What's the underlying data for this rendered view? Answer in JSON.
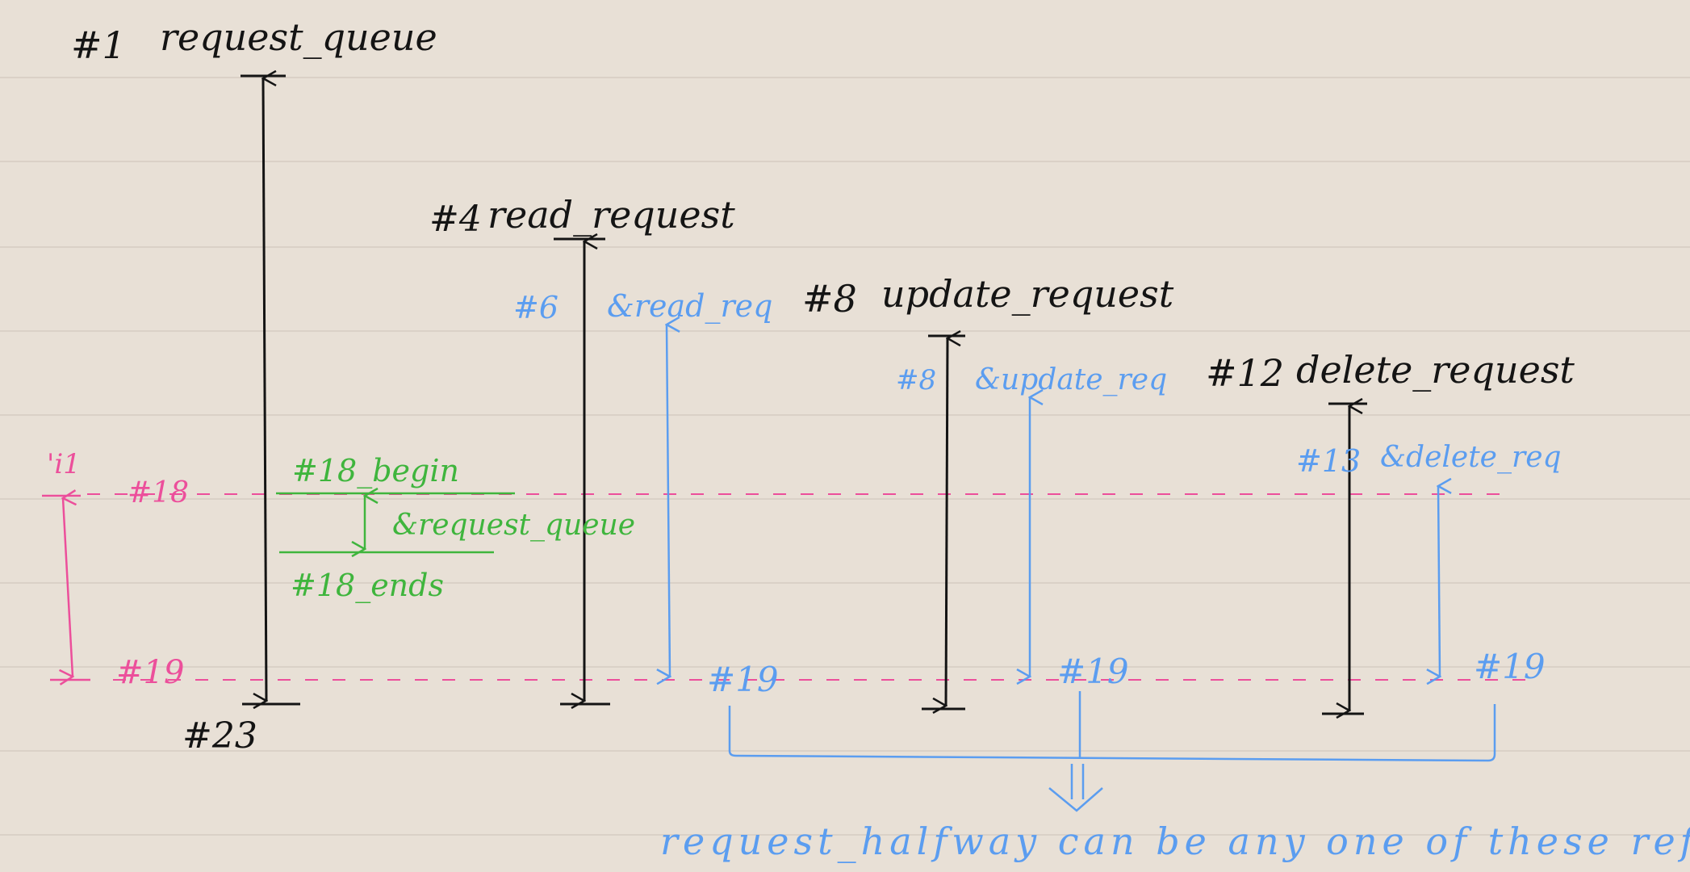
{
  "labels": {
    "request_queue": {
      "num": "#1",
      "name": "request_queue"
    },
    "read_request": {
      "num": "#4",
      "name": "read_request"
    },
    "update_request": {
      "num": "#8",
      "name": "update_request"
    },
    "delete_request": {
      "num": "#12",
      "name": "delete_request"
    },
    "end_23": "#23",
    "read_ref": {
      "num": "#6",
      "name": "&read_req",
      "end": "#19"
    },
    "update_ref": {
      "num": "#8",
      "name": "&update_req",
      "end": "#19"
    },
    "delete_ref": {
      "num": "#13",
      "name": "&delete_req",
      "end": "#19"
    },
    "queue_ref": {
      "begin": "#18_begin",
      "name": "&request_queue",
      "end": "#18_ends"
    },
    "pink": {
      "name": "'i1",
      "start": "#18",
      "end": "#19"
    },
    "caption": "request_halfway can be any one of these refs"
  },
  "colors": {
    "background": "#e8e0d6",
    "ruled_line": "#d5ccc2",
    "black": "#141414",
    "blue": "#5b9df0",
    "green": "#3fb53d",
    "pink": "#ec4f9b"
  }
}
